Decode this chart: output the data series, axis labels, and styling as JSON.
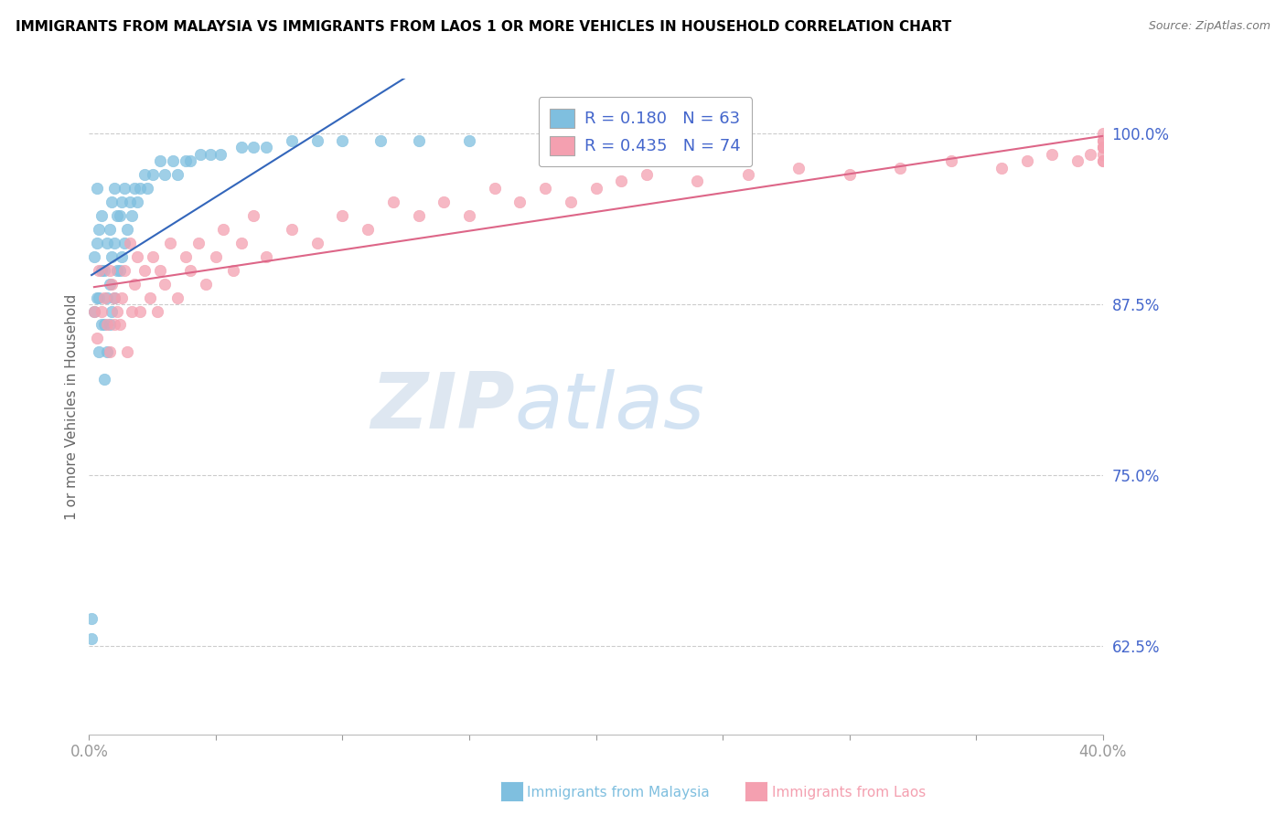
{
  "title": "IMMIGRANTS FROM MALAYSIA VS IMMIGRANTS FROM LAOS 1 OR MORE VEHICLES IN HOUSEHOLD CORRELATION CHART",
  "source": "Source: ZipAtlas.com",
  "ylabel": "1 or more Vehicles in Household",
  "xlim": [
    0.0,
    0.4
  ],
  "ylim": [
    0.56,
    1.04
  ],
  "yticks": [
    0.625,
    0.75,
    0.875,
    1.0
  ],
  "ytick_labels": [
    "62.5%",
    "75.0%",
    "87.5%",
    "100.0%"
  ],
  "xticks": [
    0.0,
    0.05,
    0.1,
    0.15,
    0.2,
    0.25,
    0.3,
    0.35,
    0.4
  ],
  "xtick_labels": [
    "0.0%",
    "",
    "",
    "",
    "",
    "",
    "",
    "",
    "40.0%"
  ],
  "legend_malaysia": "Immigrants from Malaysia",
  "legend_laos": "Immigrants from Laos",
  "R_malaysia": 0.18,
  "N_malaysia": 63,
  "R_laos": 0.435,
  "N_laos": 74,
  "color_malaysia": "#7fbfdf",
  "color_laos": "#f4a0b0",
  "trendline_color_malaysia": "#3366bb",
  "trendline_color_laos": "#dd6688",
  "background_color": "#ffffff",
  "grid_color": "#cccccc",
  "axis_color": "#4466cc",
  "title_color": "#000000",
  "watermark_zip": "ZIP",
  "watermark_atlas": "atlas",
  "malaysia_x": [
    0.001,
    0.001,
    0.002,
    0.002,
    0.003,
    0.003,
    0.003,
    0.004,
    0.004,
    0.004,
    0.005,
    0.005,
    0.005,
    0.006,
    0.006,
    0.006,
    0.007,
    0.007,
    0.007,
    0.008,
    0.008,
    0.008,
    0.009,
    0.009,
    0.009,
    0.01,
    0.01,
    0.01,
    0.011,
    0.011,
    0.012,
    0.012,
    0.013,
    0.013,
    0.014,
    0.014,
    0.015,
    0.016,
    0.017,
    0.018,
    0.019,
    0.02,
    0.022,
    0.023,
    0.025,
    0.028,
    0.03,
    0.033,
    0.035,
    0.038,
    0.04,
    0.044,
    0.048,
    0.052,
    0.06,
    0.065,
    0.07,
    0.08,
    0.09,
    0.1,
    0.115,
    0.13,
    0.15
  ],
  "malaysia_y": [
    0.63,
    0.645,
    0.87,
    0.91,
    0.88,
    0.92,
    0.96,
    0.84,
    0.88,
    0.93,
    0.86,
    0.9,
    0.94,
    0.82,
    0.86,
    0.9,
    0.84,
    0.88,
    0.92,
    0.86,
    0.89,
    0.93,
    0.87,
    0.91,
    0.95,
    0.88,
    0.92,
    0.96,
    0.9,
    0.94,
    0.9,
    0.94,
    0.91,
    0.95,
    0.92,
    0.96,
    0.93,
    0.95,
    0.94,
    0.96,
    0.95,
    0.96,
    0.97,
    0.96,
    0.97,
    0.98,
    0.97,
    0.98,
    0.97,
    0.98,
    0.98,
    0.985,
    0.985,
    0.985,
    0.99,
    0.99,
    0.99,
    0.995,
    0.995,
    0.995,
    0.995,
    0.995,
    0.995
  ],
  "laos_x": [
    0.002,
    0.003,
    0.004,
    0.005,
    0.006,
    0.007,
    0.008,
    0.008,
    0.009,
    0.01,
    0.01,
    0.011,
    0.012,
    0.013,
    0.014,
    0.015,
    0.016,
    0.017,
    0.018,
    0.019,
    0.02,
    0.022,
    0.024,
    0.025,
    0.027,
    0.028,
    0.03,
    0.032,
    0.035,
    0.038,
    0.04,
    0.043,
    0.046,
    0.05,
    0.053,
    0.057,
    0.06,
    0.065,
    0.07,
    0.08,
    0.09,
    0.1,
    0.11,
    0.12,
    0.13,
    0.14,
    0.15,
    0.16,
    0.17,
    0.18,
    0.19,
    0.2,
    0.21,
    0.22,
    0.24,
    0.26,
    0.28,
    0.3,
    0.32,
    0.34,
    0.36,
    0.37,
    0.38,
    0.39,
    0.395,
    0.4,
    0.4,
    0.4,
    0.4,
    0.4,
    0.4,
    0.4,
    0.4,
    0.4
  ],
  "laos_y": [
    0.87,
    0.85,
    0.9,
    0.87,
    0.88,
    0.86,
    0.9,
    0.84,
    0.89,
    0.86,
    0.88,
    0.87,
    0.86,
    0.88,
    0.9,
    0.84,
    0.92,
    0.87,
    0.89,
    0.91,
    0.87,
    0.9,
    0.88,
    0.91,
    0.87,
    0.9,
    0.89,
    0.92,
    0.88,
    0.91,
    0.9,
    0.92,
    0.89,
    0.91,
    0.93,
    0.9,
    0.92,
    0.94,
    0.91,
    0.93,
    0.92,
    0.94,
    0.93,
    0.95,
    0.94,
    0.95,
    0.94,
    0.96,
    0.95,
    0.96,
    0.95,
    0.96,
    0.965,
    0.97,
    0.965,
    0.97,
    0.975,
    0.97,
    0.975,
    0.98,
    0.975,
    0.98,
    0.985,
    0.98,
    0.985,
    0.99,
    0.98,
    0.99,
    0.995,
    0.985,
    0.99,
    0.98,
    0.995,
    1.0
  ]
}
